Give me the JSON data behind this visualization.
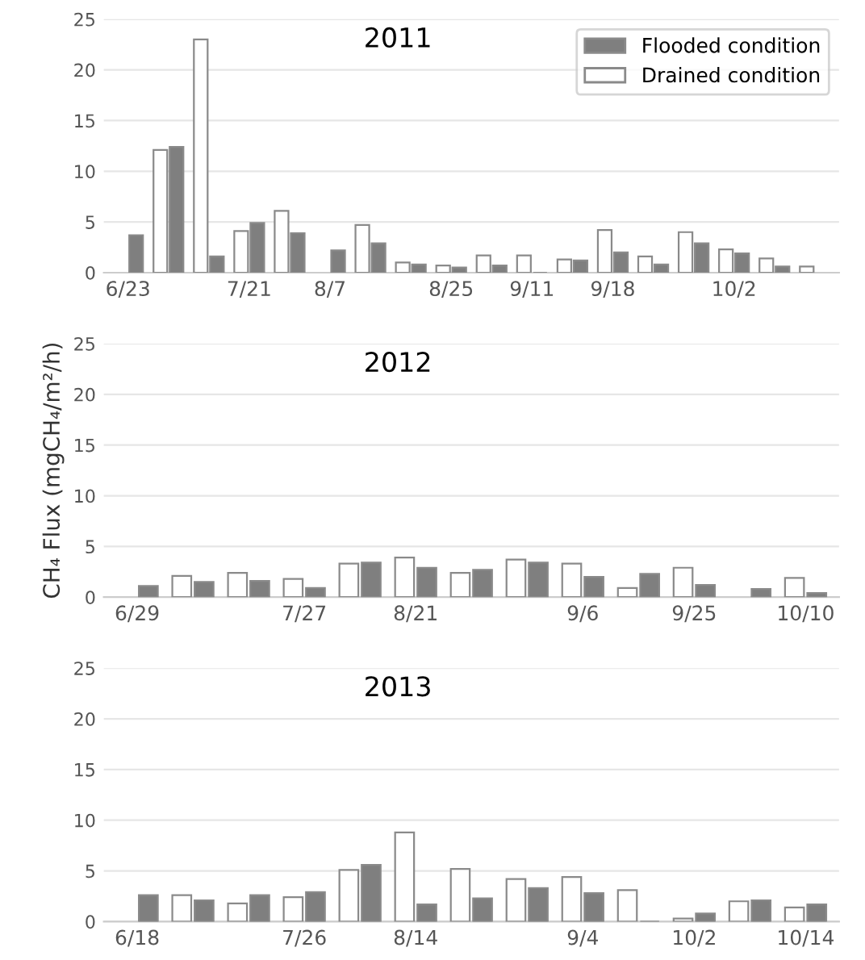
{
  "chart_data": [
    {
      "type": "bar",
      "title": "2011",
      "categories": [
        "6/23",
        null,
        null,
        "7/21",
        null,
        "8/7",
        null,
        null,
        "8/25",
        null,
        "9/11",
        null,
        "9/18",
        null,
        null,
        "10/2",
        null,
        null
      ],
      "series": [
        {
          "name": "Drained condition",
          "color": "#ffffff",
          "values": [
            null,
            12.1,
            23.0,
            4.1,
            6.1,
            null,
            4.7,
            1.0,
            0.7,
            1.7,
            1.7,
            1.3,
            4.2,
            1.6,
            4.0,
            2.3,
            1.4,
            0.6
          ]
        },
        {
          "name": "Flooded condition",
          "color": "#7f7f7f",
          "values": [
            3.7,
            12.4,
            1.6,
            4.9,
            3.9,
            2.2,
            2.9,
            0.8,
            0.5,
            0.7,
            0,
            1.2,
            2.0,
            0.8,
            2.9,
            1.9,
            0.6,
            null
          ]
        }
      ],
      "ylim": [
        0,
        25
      ],
      "yticks": [
        0,
        5,
        10,
        15,
        20,
        25
      ],
      "grid": "y",
      "legend": "top right"
    },
    {
      "type": "bar",
      "title": "2012",
      "ylabel": "CH₄ Flux (mgCH₄/m²/h)",
      "categories": [
        "6/29",
        null,
        null,
        "7/27",
        null,
        "8/21",
        null,
        null,
        "9/6",
        null,
        "9/25",
        null,
        "10/10"
      ],
      "series": [
        {
          "color": "#ffffff",
          "values": [
            null,
            2.1,
            2.4,
            1.8,
            3.3,
            3.9,
            2.4,
            3.7,
            3.3,
            0.9,
            2.9,
            null,
            1.9
          ]
        },
        {
          "color": "#7f7f7f",
          "values": [
            1.1,
            1.5,
            1.6,
            0.9,
            3.4,
            2.9,
            2.7,
            3.4,
            2.0,
            2.3,
            1.2,
            0.8,
            0.4
          ]
        }
      ],
      "ylim": [
        0,
        25
      ],
      "yticks": [
        0,
        5,
        10,
        15,
        20,
        25
      ],
      "grid": "y"
    },
    {
      "type": "bar",
      "title": "2013",
      "categories": [
        "6/18",
        null,
        null,
        "7/26",
        null,
        "8/14",
        null,
        null,
        "9/4",
        null,
        "10/2",
        null,
        "10/14"
      ],
      "series": [
        {
          "color": "#ffffff",
          "values": [
            null,
            2.6,
            1.8,
            2.4,
            5.1,
            8.8,
            5.2,
            4.2,
            4.4,
            3.1,
            0.3,
            2.0,
            1.4
          ]
        },
        {
          "color": "#7f7f7f",
          "values": [
            2.6,
            2.1,
            2.6,
            2.9,
            5.6,
            1.7,
            2.3,
            3.3,
            2.8,
            0,
            0.8,
            2.1,
            1.7
          ]
        }
      ],
      "ylim": [
        0,
        25
      ],
      "yticks": [
        0,
        5,
        10,
        15,
        20,
        25
      ],
      "grid": "y"
    }
  ]
}
